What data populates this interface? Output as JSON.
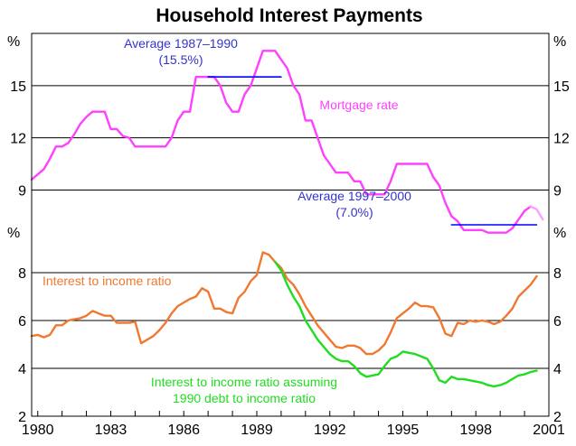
{
  "chart_data": {
    "title": "Household Interest Payments",
    "type": "line",
    "x_ticks": [
      "1980",
      "1983",
      "1986",
      "1989",
      "1992",
      "1995",
      "1998",
      "2001"
    ],
    "x_range": [
      1979.75,
      2001.0
    ],
    "panels": [
      {
        "unit": "%",
        "ylim": [
          7,
          18
        ],
        "yticks": [
          "15",
          "12",
          "9"
        ],
        "ytick_values": [
          15,
          12,
          9
        ],
        "grid": true,
        "series": [
          {
            "name": "Mortgage rate",
            "color": "#ff40ff",
            "points": [
              [
                1979.75,
                9.6
              ],
              [
                1980.0,
                9.9
              ],
              [
                1980.25,
                10.2
              ],
              [
                1980.5,
                10.8
              ],
              [
                1980.75,
                11.5
              ],
              [
                1981.0,
                11.5
              ],
              [
                1981.25,
                11.7
              ],
              [
                1981.5,
                12.2
              ],
              [
                1981.75,
                12.8
              ],
              [
                1982.0,
                13.2
              ],
              [
                1982.25,
                13.5
              ],
              [
                1982.5,
                13.5
              ],
              [
                1982.75,
                13.5
              ],
              [
                1983.0,
                12.5
              ],
              [
                1983.25,
                12.5
              ],
              [
                1983.5,
                12.1
              ],
              [
                1983.75,
                12.0
              ],
              [
                1984.0,
                11.5
              ],
              [
                1984.5,
                11.5
              ],
              [
                1985.0,
                11.5
              ],
              [
                1985.25,
                11.5
              ],
              [
                1985.5,
                12.0
              ],
              [
                1985.75,
                13.0
              ],
              [
                1986.0,
                13.5
              ],
              [
                1986.25,
                13.5
              ],
              [
                1986.5,
                15.5
              ],
              [
                1987.0,
                15.5
              ],
              [
                1987.25,
                15.5
              ],
              [
                1987.5,
                15.0
              ],
              [
                1987.75,
                14.0
              ],
              [
                1988.0,
                13.5
              ],
              [
                1988.25,
                13.5
              ],
              [
                1988.5,
                14.5
              ],
              [
                1988.75,
                15.0
              ],
              [
                1989.0,
                16.0
              ],
              [
                1989.25,
                17.0
              ],
              [
                1989.5,
                17.0
              ],
              [
                1989.75,
                17.0
              ],
              [
                1990.0,
                16.5
              ],
              [
                1990.25,
                16.0
              ],
              [
                1990.5,
                15.0
              ],
              [
                1990.75,
                14.5
              ],
              [
                1991.0,
                13.0
              ],
              [
                1991.25,
                13.0
              ],
              [
                1991.5,
                12.0
              ],
              [
                1991.75,
                11.0
              ],
              [
                1992.0,
                10.5
              ],
              [
                1992.25,
                10.0
              ],
              [
                1992.5,
                10.0
              ],
              [
                1992.75,
                10.0
              ],
              [
                1993.0,
                9.5
              ],
              [
                1993.25,
                9.5
              ],
              [
                1993.5,
                8.75
              ],
              [
                1994.0,
                8.75
              ],
              [
                1994.25,
                8.75
              ],
              [
                1994.5,
                9.5
              ],
              [
                1994.75,
                10.5
              ],
              [
                1995.0,
                10.5
              ],
              [
                1995.5,
                10.5
              ],
              [
                1995.75,
                10.5
              ],
              [
                1996.0,
                10.5
              ],
              [
                1996.25,
                9.75
              ],
              [
                1996.5,
                9.25
              ],
              [
                1996.75,
                8.25
              ],
              [
                1997.0,
                7.5
              ],
              [
                1997.25,
                7.2
              ],
              [
                1997.5,
                6.7
              ],
              [
                1997.75,
                6.7
              ],
              [
                1998.0,
                6.7
              ],
              [
                1998.25,
                6.7
              ],
              [
                1998.5,
                6.55
              ],
              [
                1998.75,
                6.55
              ],
              [
                1999.0,
                6.55
              ],
              [
                1999.25,
                6.55
              ],
              [
                1999.5,
                6.8
              ],
              [
                1999.75,
                7.3
              ],
              [
                2000.0,
                7.8
              ],
              [
                2000.25,
                8.05
              ]
            ]
          },
          {
            "name": "",
            "color": "#ff9cff",
            "points": [
              [
                2000.25,
                8.05
              ],
              [
                2000.5,
                7.9
              ],
              [
                2000.75,
                7.3
              ]
            ]
          },
          {
            "name": "",
            "color": "#0000ff",
            "points": [
              [
                1987.0,
                15.5
              ],
              [
                1990.0,
                15.5
              ]
            ]
          },
          {
            "name": "",
            "color": "#0000ff",
            "points": [
              [
                1997.0,
                7.0
              ],
              [
                2000.5,
                7.0
              ]
            ]
          }
        ],
        "annotations": [
          {
            "lines": [
              "Average 1987–1990",
              "(15.5%)"
            ],
            "color": "#3333cc"
          },
          {
            "lines": [
              "Mortgage rate"
            ],
            "color": "#ff40ff"
          },
          {
            "lines": [
              "Average 1997–2000",
              "(7.0%)"
            ],
            "color": "#3333cc"
          }
        ]
      },
      {
        "unit": "%",
        "ylim": [
          2,
          10
        ],
        "yticks": [
          "8",
          "6",
          "4",
          "2"
        ],
        "ytick_values": [
          8,
          6,
          4,
          2
        ],
        "grid": true,
        "series": [
          {
            "name": "Interest to income ratio",
            "color": "#f07830",
            "points": [
              [
                1979.75,
                5.35
              ],
              [
                1980.0,
                5.4
              ],
              [
                1980.25,
                5.3
              ],
              [
                1980.5,
                5.4
              ],
              [
                1980.75,
                5.8
              ],
              [
                1981.0,
                5.8
              ],
              [
                1981.25,
                6.0
              ],
              [
                1981.5,
                6.05
              ],
              [
                1981.75,
                6.1
              ],
              [
                1982.0,
                6.2
              ],
              [
                1982.25,
                6.4
              ],
              [
                1982.5,
                6.3
              ],
              [
                1982.75,
                6.2
              ],
              [
                1983.0,
                6.2
              ],
              [
                1983.25,
                5.9
              ],
              [
                1983.5,
                5.9
              ],
              [
                1983.75,
                5.9
              ],
              [
                1984.0,
                5.95
              ],
              [
                1984.25,
                5.05
              ],
              [
                1984.5,
                5.2
              ],
              [
                1984.75,
                5.35
              ],
              [
                1985.0,
                5.6
              ],
              [
                1985.25,
                5.9
              ],
              [
                1985.5,
                6.3
              ],
              [
                1985.75,
                6.6
              ],
              [
                1986.0,
                6.75
              ],
              [
                1986.25,
                6.9
              ],
              [
                1986.5,
                7.0
              ],
              [
                1986.75,
                7.35
              ],
              [
                1987.0,
                7.2
              ],
              [
                1987.25,
                6.5
              ],
              [
                1987.5,
                6.5
              ],
              [
                1987.75,
                6.35
              ],
              [
                1988.0,
                6.3
              ],
              [
                1988.25,
                6.95
              ],
              [
                1988.5,
                7.2
              ],
              [
                1988.75,
                7.65
              ],
              [
                1989.0,
                7.9
              ],
              [
                1989.25,
                8.85
              ],
              [
                1989.5,
                8.75
              ],
              [
                1989.75,
                8.45
              ],
              [
                1990.0,
                8.2
              ],
              [
                1990.25,
                7.75
              ],
              [
                1990.5,
                7.5
              ],
              [
                1990.75,
                7.1
              ],
              [
                1991.0,
                6.6
              ],
              [
                1991.25,
                6.2
              ],
              [
                1991.5,
                5.8
              ],
              [
                1991.75,
                5.5
              ],
              [
                1992.0,
                5.2
              ],
              [
                1992.25,
                4.9
              ],
              [
                1992.5,
                4.85
              ],
              [
                1992.75,
                4.95
              ],
              [
                1993.0,
                4.95
              ],
              [
                1993.25,
                4.85
              ],
              [
                1993.5,
                4.6
              ],
              [
                1993.75,
                4.6
              ],
              [
                1994.0,
                4.75
              ],
              [
                1994.25,
                5.0
              ],
              [
                1994.5,
                5.5
              ],
              [
                1994.75,
                6.1
              ],
              [
                1995.0,
                6.3
              ],
              [
                1995.25,
                6.5
              ],
              [
                1995.5,
                6.75
              ],
              [
                1995.75,
                6.6
              ],
              [
                1996.0,
                6.6
              ],
              [
                1996.25,
                6.55
              ],
              [
                1996.5,
                6.1
              ],
              [
                1996.75,
                5.45
              ],
              [
                1997.0,
                5.35
              ],
              [
                1997.25,
                5.9
              ],
              [
                1997.5,
                5.85
              ],
              [
                1997.75,
                6.0
              ],
              [
                1998.0,
                5.95
              ],
              [
                1998.25,
                6.0
              ],
              [
                1998.5,
                5.95
              ],
              [
                1998.75,
                5.85
              ],
              [
                1999.0,
                5.95
              ],
              [
                1999.25,
                6.2
              ],
              [
                1999.5,
                6.5
              ],
              [
                1999.75,
                7.0
              ],
              [
                2000.0,
                7.25
              ],
              [
                2000.25,
                7.5
              ],
              [
                2000.5,
                7.85
              ]
            ]
          },
          {
            "name": "",
            "color": "#20dd20",
            "points": [
              [
                1989.75,
                8.45
              ],
              [
                1990.0,
                8.1
              ],
              [
                1990.25,
                7.5
              ],
              [
                1990.5,
                7.0
              ],
              [
                1990.75,
                6.6
              ],
              [
                1991.0,
                6.0
              ],
              [
                1991.25,
                5.6
              ],
              [
                1991.5,
                5.2
              ],
              [
                1991.75,
                4.9
              ],
              [
                1992.0,
                4.6
              ],
              [
                1992.25,
                4.4
              ],
              [
                1992.5,
                4.3
              ],
              [
                1992.75,
                4.3
              ],
              [
                1993.0,
                4.1
              ],
              [
                1993.25,
                3.8
              ],
              [
                1993.5,
                3.65
              ],
              [
                1993.75,
                3.7
              ],
              [
                1994.0,
                3.75
              ],
              [
                1994.25,
                4.1
              ],
              [
                1994.5,
                4.4
              ],
              [
                1994.75,
                4.5
              ],
              [
                1995.0,
                4.7
              ],
              [
                1995.25,
                4.65
              ],
              [
                1995.5,
                4.6
              ],
              [
                1995.75,
                4.5
              ],
              [
                1996.0,
                4.4
              ],
              [
                1996.25,
                4.0
              ],
              [
                1996.5,
                3.5
              ],
              [
                1996.75,
                3.4
              ],
              [
                1997.0,
                3.65
              ],
              [
                1997.25,
                3.55
              ],
              [
                1997.5,
                3.55
              ],
              [
                1997.75,
                3.5
              ],
              [
                1998.0,
                3.45
              ],
              [
                1998.25,
                3.4
              ],
              [
                1998.5,
                3.3
              ],
              [
                1998.75,
                3.25
              ],
              [
                1999.0,
                3.3
              ],
              [
                1999.25,
                3.4
              ],
              [
                1999.5,
                3.55
              ],
              [
                1999.75,
                3.7
              ],
              [
                2000.0,
                3.75
              ],
              [
                2000.25,
                3.85
              ],
              [
                2000.5,
                3.9
              ]
            ]
          }
        ],
        "annotations": [
          {
            "lines": [
              "Interest to income ratio"
            ],
            "color": "#f07830"
          },
          {
            "lines": [
              "Interest to income ratio assuming",
              "1990 debt to income ratio"
            ],
            "color": "#20dd20"
          }
        ]
      }
    ]
  }
}
